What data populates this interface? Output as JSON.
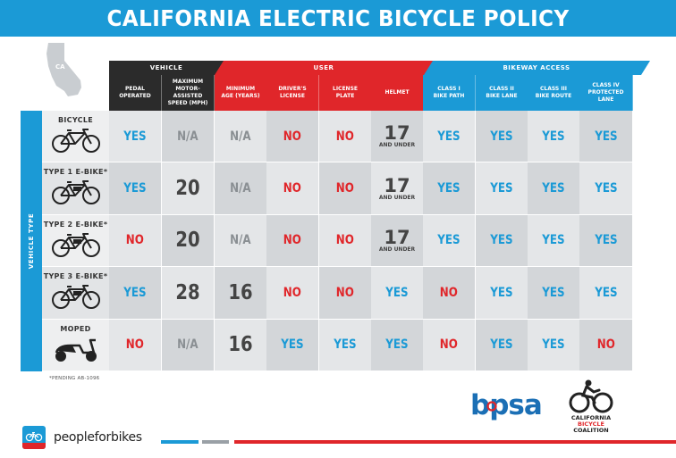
{
  "title": "CALIFORNIA ELECTRIC BICYCLE POLICY",
  "state_label": "CA",
  "groups": [
    {
      "label": "VEHICLE",
      "color": "#2b2b2b"
    },
    {
      "label": "USER",
      "color": "#e0262a"
    },
    {
      "label": "BIKEWAY ACCESS",
      "color": "#1b9ad6"
    }
  ],
  "columns": [
    {
      "label": "PEDAL\nOPERATED",
      "group": 0
    },
    {
      "label": "MAXIMUM\nMOTOR-ASSISTED\nSPEED (MPH)",
      "group": 0
    },
    {
      "label": "MINIMUM\nAGE (YEARS)",
      "group": 1
    },
    {
      "label": "DRIVER'S\nLICENSE",
      "group": 1
    },
    {
      "label": "LICENSE\nPLATE",
      "group": 1
    },
    {
      "label": "HELMET",
      "group": 1
    },
    {
      "label": "CLASS I\nBIKE PATH",
      "group": 2
    },
    {
      "label": "CLASS II\nBIKE LANE",
      "group": 2
    },
    {
      "label": "CLASS III\nBIKE ROUTE",
      "group": 2
    },
    {
      "label": "CLASS IV\nPROTECTED LANE",
      "group": 2
    }
  ],
  "side_label": "VEHICLE TYPE",
  "rows": [
    {
      "name": "BICYCLE",
      "icon": "bicycle-icon",
      "cells": [
        "YES",
        "N/A",
        "N/A",
        "NO",
        "NO",
        "17|AND UNDER",
        "YES",
        "YES",
        "YES",
        "YES"
      ]
    },
    {
      "name": "TYPE 1 E-BIKE*",
      "icon": "ebike-icon",
      "cells": [
        "YES",
        "20",
        "N/A",
        "NO",
        "NO",
        "17|AND UNDER",
        "YES",
        "YES",
        "YES",
        "YES"
      ]
    },
    {
      "name": "TYPE 2 E-BIKE*",
      "icon": "ebike-icon",
      "cells": [
        "NO",
        "20",
        "N/A",
        "NO",
        "NO",
        "17|AND UNDER",
        "YES",
        "YES",
        "YES",
        "YES"
      ]
    },
    {
      "name": "TYPE 3 E-BIKE*",
      "icon": "ebike-icon",
      "cells": [
        "YES",
        "28",
        "16",
        "NO",
        "NO",
        "YES",
        "NO",
        "YES",
        "YES",
        "YES"
      ]
    },
    {
      "name": "MOPED",
      "icon": "moped-icon",
      "cells": [
        "NO",
        "N/A",
        "16",
        "YES",
        "YES",
        "YES",
        "NO",
        "YES",
        "YES",
        "NO"
      ]
    }
  ],
  "footnote": "*PENDING AB-1096",
  "logos": {
    "peopleforbikes": "peopleforbikes",
    "bpsa": "bpsa",
    "cbc_line1": "CALIFORNIA",
    "cbc_line2": "BICYCLE",
    "cbc_line3": "COALITION"
  },
  "colors": {
    "blue": "#1b9ad6",
    "red": "#e0262a",
    "dark": "#2b2b2b",
    "gray_text": "#8a8f93",
    "num_text": "#444444",
    "cell_light": "#e4e6e8",
    "cell_dark": "#d3d6d9"
  }
}
